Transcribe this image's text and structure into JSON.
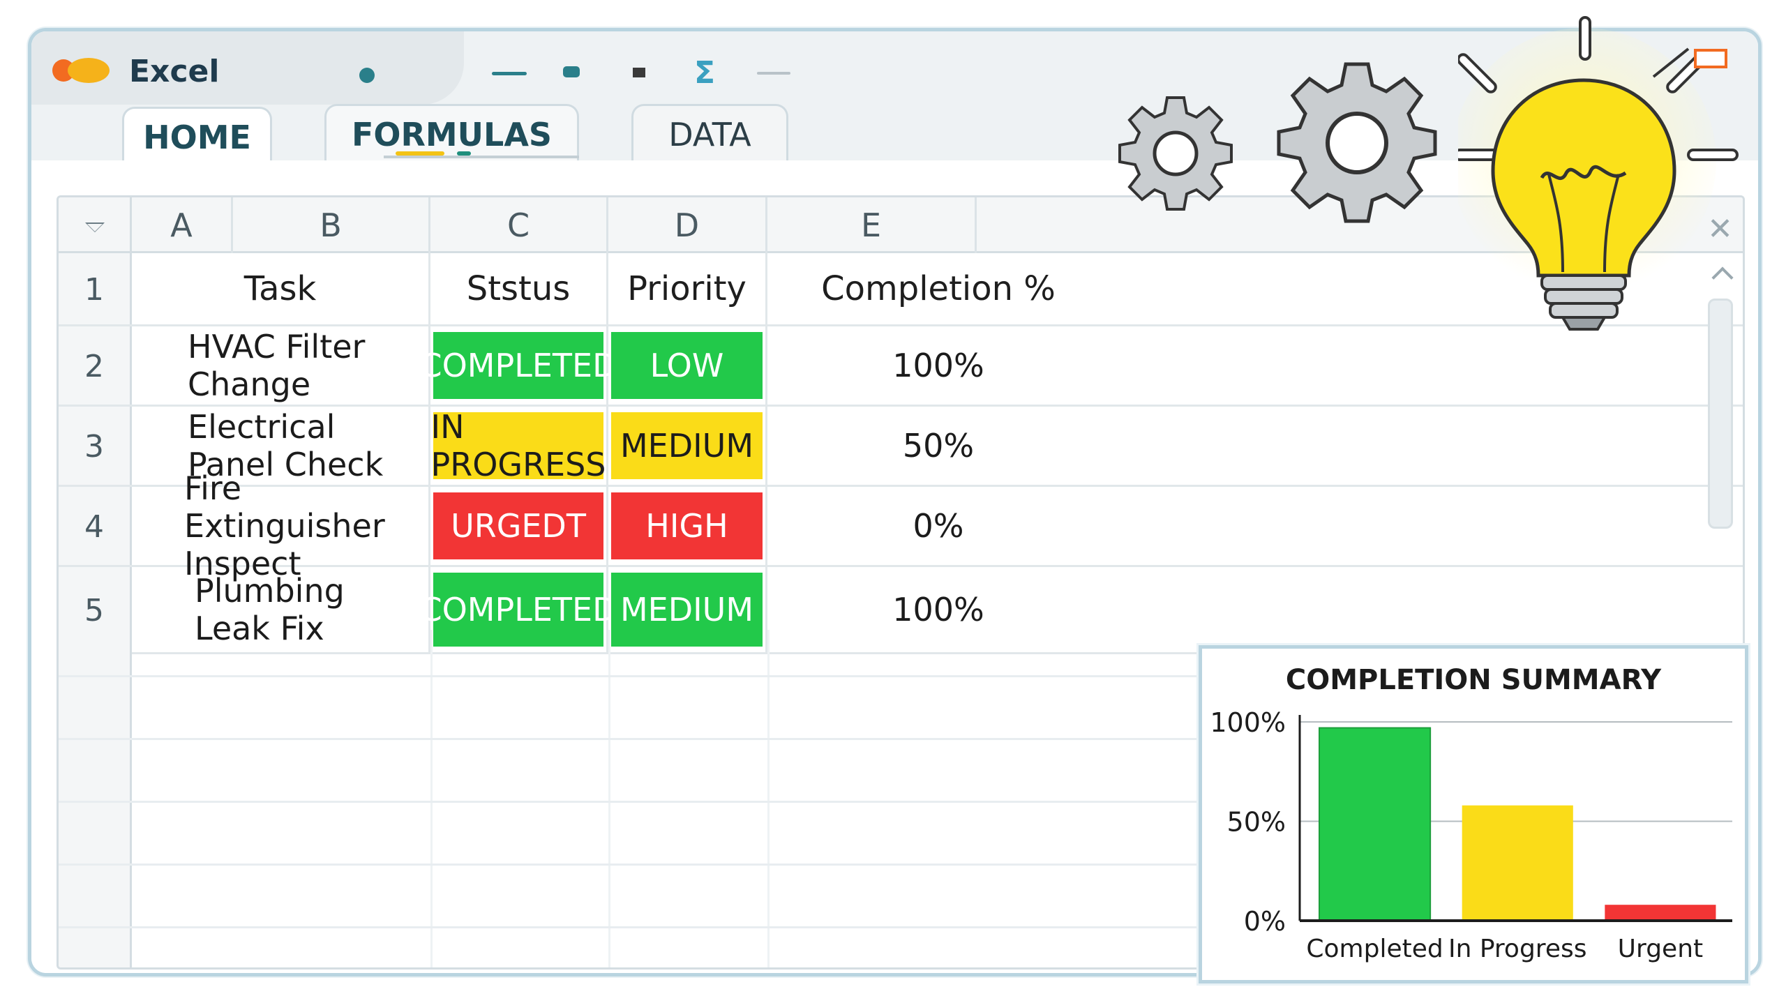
{
  "app": {
    "name": "Excel",
    "tabs": [
      {
        "label": "HOME"
      },
      {
        "label": "FORMULAS"
      },
      {
        "label": "DATA"
      }
    ]
  },
  "columns": [
    "A",
    "B",
    "C",
    "D",
    "E"
  ],
  "header": {
    "row_num": "1",
    "task": "Task",
    "status": "Ststus",
    "priority": "Priority",
    "completion": "Completion %"
  },
  "rows": [
    {
      "num": "2",
      "task": "HVAC Filter Change",
      "status": "COMPLETED",
      "priority": "LOW",
      "completion": "100%"
    },
    {
      "num": "3",
      "task": "Electrical Panel Check",
      "status": "IN PROGRESS",
      "priority": "MEDIUM",
      "completion": "50%"
    },
    {
      "num": "4",
      "task": "Fire Extinguisher Inspect",
      "status": "URGEDT",
      "priority": "HIGH",
      "completion": "0%"
    },
    {
      "num": "5",
      "task": "Plumbing Leak Fix",
      "status": "COMPLETED",
      "priority": "MEDIUM",
      "completion": "100%"
    }
  ],
  "colors": {
    "completed": "#22c94a",
    "in_progress": "#fadc18",
    "urgent": "#f23535",
    "accent": "#1f4d5a"
  },
  "icons": {
    "scroll_close": "✕"
  },
  "chart_data": {
    "type": "bar",
    "title": "COMPLETION SUMMARY",
    "categories": [
      "Completed",
      "In Progress",
      "Urgent"
    ],
    "values": [
      97,
      58,
      8
    ],
    "colors": [
      "#22c94a",
      "#fadc18",
      "#f23535"
    ],
    "yticks": [
      "0%",
      "50%",
      "100%"
    ],
    "ylim": [
      0,
      100
    ],
    "grid": true
  }
}
